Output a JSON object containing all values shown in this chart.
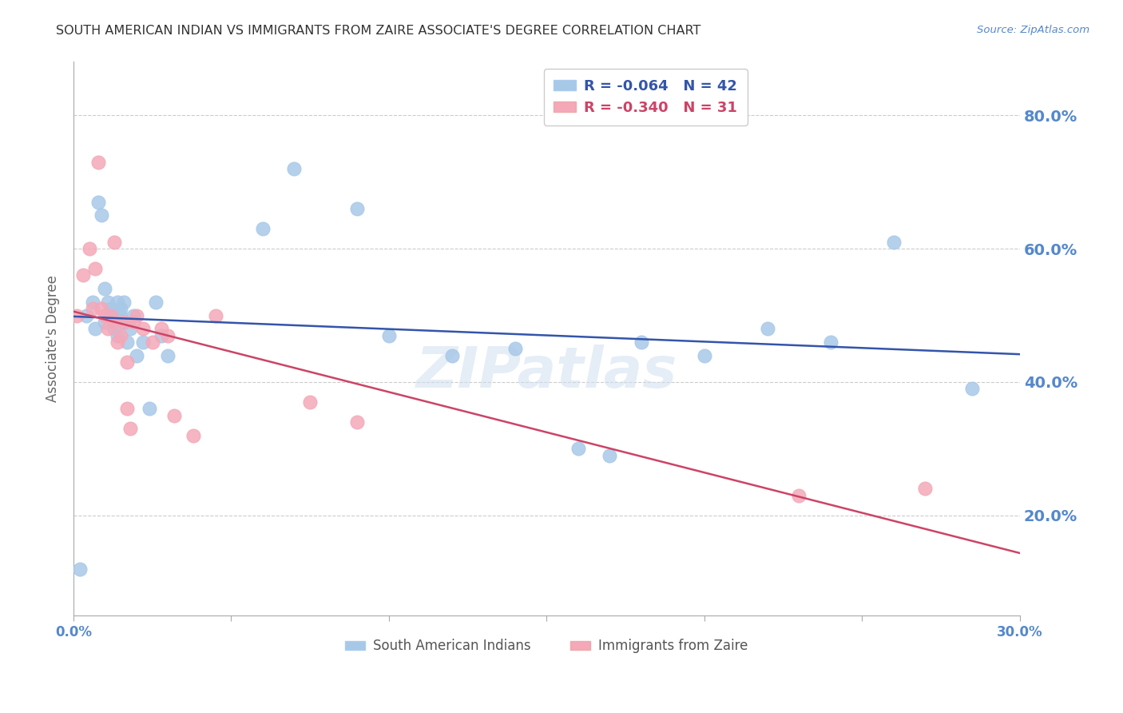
{
  "title": "SOUTH AMERICAN INDIAN VS IMMIGRANTS FROM ZAIRE ASSOCIATE'S DEGREE CORRELATION CHART",
  "source": "Source: ZipAtlas.com",
  "ylabel": "Associate's Degree",
  "ytick_labels": [
    "20.0%",
    "40.0%",
    "60.0%",
    "80.0%"
  ],
  "ytick_values": [
    0.2,
    0.4,
    0.6,
    0.8
  ],
  "xmin": 0.0,
  "xmax": 0.3,
  "ymin": 0.05,
  "ymax": 0.88,
  "series1_color": "#a8c8e8",
  "series2_color": "#f4a8b8",
  "trendline1_color": "#3355aa",
  "trendline2_color": "#cc4466",
  "watermark": "ZIPatlas",
  "background_color": "#ffffff",
  "grid_color": "#cccccc",
  "axis_label_color": "#5588cc",
  "title_color": "#333333",
  "series1_label": "South American Indians",
  "series2_label": "Immigrants from Zaire",
  "R1": -0.064,
  "N1": 42,
  "R2": -0.34,
  "N2": 31,
  "blue_x": [
    0.002,
    0.004,
    0.006,
    0.007,
    0.008,
    0.009,
    0.01,
    0.01,
    0.011,
    0.012,
    0.012,
    0.013,
    0.013,
    0.014,
    0.014,
    0.015,
    0.015,
    0.016,
    0.016,
    0.017,
    0.018,
    0.019,
    0.02,
    0.022,
    0.024,
    0.026,
    0.028,
    0.03,
    0.06,
    0.07,
    0.09,
    0.1,
    0.12,
    0.14,
    0.16,
    0.17,
    0.18,
    0.2,
    0.22,
    0.24,
    0.26,
    0.285
  ],
  "blue_y": [
    0.12,
    0.5,
    0.52,
    0.48,
    0.67,
    0.65,
    0.49,
    0.54,
    0.52,
    0.5,
    0.51,
    0.48,
    0.5,
    0.47,
    0.52,
    0.5,
    0.51,
    0.49,
    0.52,
    0.46,
    0.48,
    0.5,
    0.44,
    0.46,
    0.36,
    0.52,
    0.47,
    0.44,
    0.63,
    0.72,
    0.66,
    0.47,
    0.44,
    0.45,
    0.3,
    0.29,
    0.46,
    0.44,
    0.48,
    0.46,
    0.61,
    0.39
  ],
  "pink_x": [
    0.001,
    0.003,
    0.005,
    0.006,
    0.007,
    0.008,
    0.009,
    0.01,
    0.011,
    0.012,
    0.013,
    0.013,
    0.014,
    0.015,
    0.016,
    0.017,
    0.017,
    0.018,
    0.019,
    0.02,
    0.022,
    0.025,
    0.028,
    0.03,
    0.032,
    0.038,
    0.045,
    0.075,
    0.09,
    0.23,
    0.27
  ],
  "pink_y": [
    0.5,
    0.56,
    0.6,
    0.51,
    0.57,
    0.73,
    0.51,
    0.5,
    0.48,
    0.5,
    0.49,
    0.61,
    0.46,
    0.47,
    0.49,
    0.36,
    0.43,
    0.33,
    0.49,
    0.5,
    0.48,
    0.46,
    0.48,
    0.47,
    0.35,
    0.32,
    0.5,
    0.37,
    0.34,
    0.23,
    0.24
  ]
}
